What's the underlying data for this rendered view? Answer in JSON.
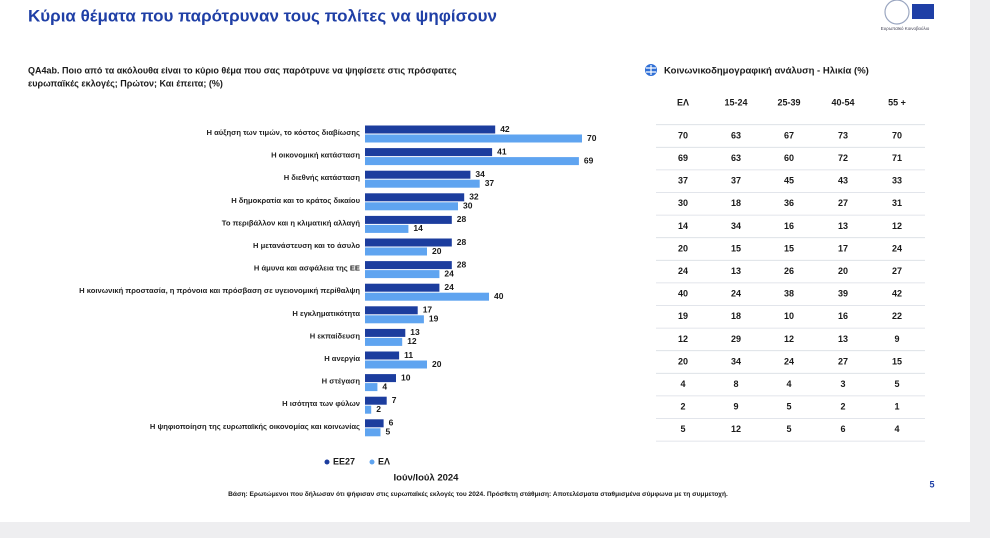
{
  "chart_data": {
    "type": "bar",
    "orientation": "horizontal",
    "title": "Κύρια θέματα που παρότρυναν τους πολίτες να ψηφίσουν",
    "question": [
      "QA4ab. Ποιο από τα ακόλουθα είναι το κύριο θέμα που σας παρότρυνε να ψηφίσετε στις πρόσφατες",
      "ευρωπαϊκές εκλογές; Πρώτον; Και έπειτα; (%)"
    ],
    "categories": [
      "Η αύξηση των τιμών, το κόστος διαβίωσης",
      "Η οικονομική κατάσταση",
      "Η διεθνής κατάσταση",
      "Η δημοκρατία και το κράτος δικαίου",
      "Το περιβάλλον και η κλιματική αλλαγή",
      "Η μετανάστευση και το άσυλο",
      "Η άμυνα και ασφάλεια της ΕΕ",
      "Η κοινωνική προστασία, η πρόνοια και πρόσβαση σε υγειονομική περίθαλψη",
      "Η εγκληματικότητα",
      "Η εκπαίδευση",
      "Η ανεργία",
      "Η στέγαση",
      "Η ισότητα των φύλων",
      "Η ψηφιοποίηση της ευρωπαϊκής οικονομίας και κοινωνίας"
    ],
    "series": [
      {
        "name": "EE27",
        "color": "#1c3d9e",
        "values": [
          42,
          41,
          34,
          32,
          28,
          28,
          28,
          24,
          17,
          13,
          11,
          10,
          7,
          6
        ]
      },
      {
        "name": "ΕΛ",
        "color": "#5fa4f0",
        "values": [
          70,
          69,
          37,
          30,
          14,
          20,
          24,
          40,
          19,
          12,
          20,
          4,
          2,
          5
        ]
      }
    ],
    "period": "Ιούν/Ιούλ 2024",
    "note": "Βάση: Ερωτώμενοι που δήλωσαν ότι ψήφισαν στις ευρωπαϊκές εκλογές του 2024. Πρόσθετη στάθμιση: Αποτελέσματα σταθμισμένα σύμφωνα με τη συμμετοχή."
  },
  "table": {
    "title": "Κοινωνικοδημογραφική ανάλυση - Ηλικία (%)",
    "columns": [
      "ΕΛ",
      "15-24",
      "25-39",
      "40-54",
      "55 +"
    ],
    "rows": [
      [
        70,
        63,
        67,
        73,
        70
      ],
      [
        69,
        63,
        60,
        72,
        71
      ],
      [
        37,
        37,
        45,
        43,
        33
      ],
      [
        30,
        18,
        36,
        27,
        31
      ],
      [
        14,
        34,
        16,
        13,
        12
      ],
      [
        20,
        15,
        15,
        17,
        24
      ],
      [
        24,
        13,
        26,
        20,
        27
      ],
      [
        40,
        24,
        38,
        39,
        42
      ],
      [
        19,
        18,
        10,
        16,
        22
      ],
      [
        12,
        29,
        12,
        13,
        9
      ],
      [
        20,
        34,
        24,
        27,
        15
      ],
      [
        4,
        8,
        4,
        3,
        5
      ],
      [
        2,
        9,
        5,
        2,
        1
      ],
      [
        5,
        12,
        5,
        6,
        4
      ]
    ]
  },
  "logo": "Ευρωπαϊκό Κοινοβούλιο",
  "page_number": "5"
}
